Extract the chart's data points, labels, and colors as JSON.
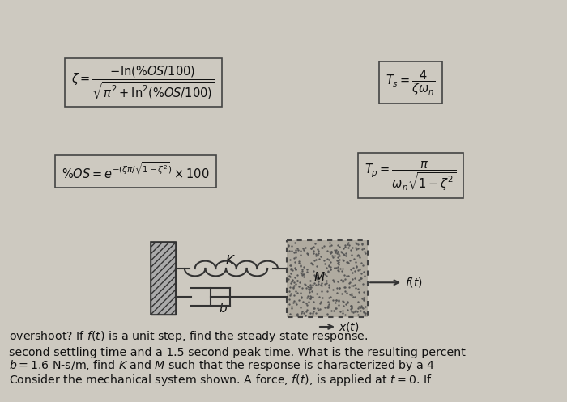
{
  "bg_color": "#cdc9c0",
  "text_color": "#111111",
  "box_edge_color": "#444444",
  "box_face_color": "#cdc9c0",
  "wall_color": "#888888",
  "mass_face_color": "#b8b4ac",
  "para_lines": [
    "Consider the mechanical system shown. A force, $f(t)$, is applied at $t = 0$. If",
    "$b = 1.6$ N-s/m, find $K$ and $M$ such that the response is characterized by a 4",
    "second settling time and a 1.5 second peak time. What is the resulting percent",
    "overshoot? If $f(t)$ is a unit step, find the steady state response."
  ],
  "formula1": "$\\%OS = e^{-(\\zeta\\pi/\\sqrt{1-\\zeta^2})} \\times 100$",
  "formula2": "$T_p = \\dfrac{\\pi}{\\omega_n\\sqrt{1-\\zeta^2}}$",
  "formula3": "$\\zeta = \\dfrac{-\\mathrm{ln}(\\%OS/100)}{\\sqrt{\\pi^2 + \\mathrm{ln}^2(\\%OS/100)}}$",
  "formula4": "$T_s = \\dfrac{4}{\\zeta\\omega_n}$",
  "label_b": "$b$",
  "label_K": "$K$",
  "label_M": "$M$",
  "label_xt": "$x(t)$",
  "label_ft": "$f(t)$"
}
